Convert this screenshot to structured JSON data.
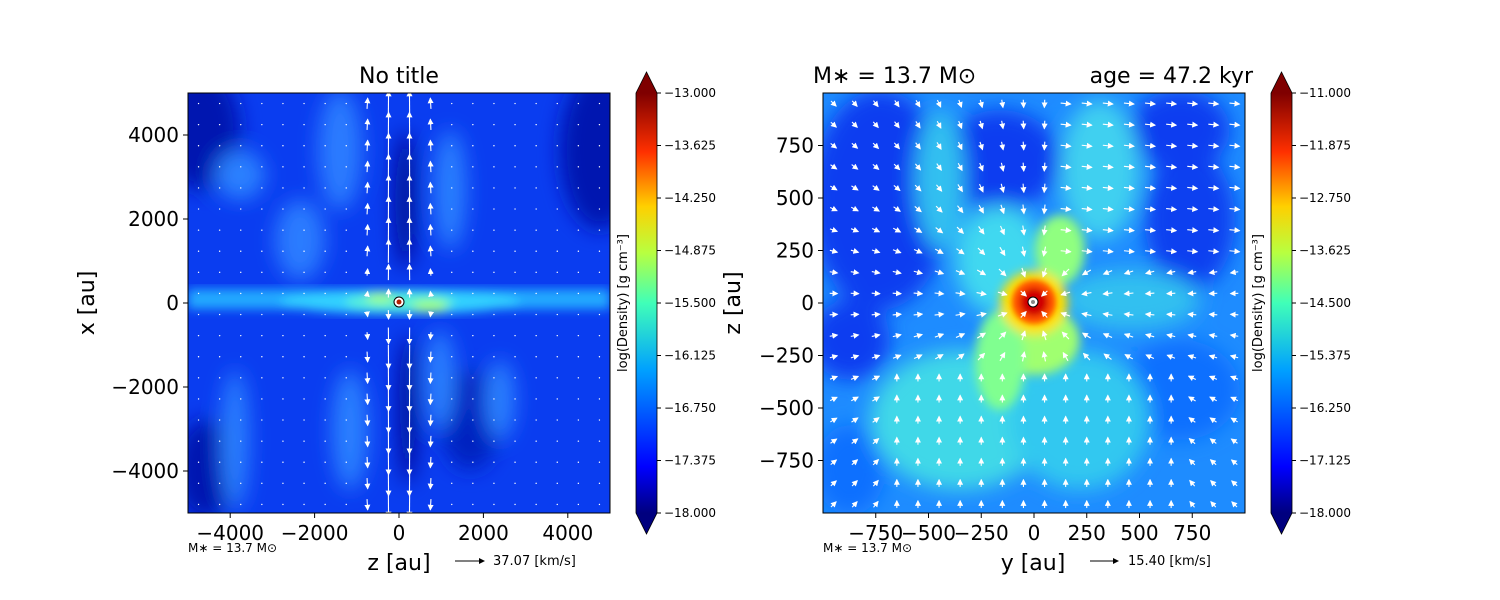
{
  "chart_data": [
    {
      "type": "heatmap",
      "title": "No title",
      "xlabel": "z [au]",
      "ylabel": "x [au]",
      "xlim": [
        -5000,
        5000
      ],
      "ylim": [
        -5000,
        5000
      ],
      "xticks": [
        -4000,
        -2000,
        0,
        2000,
        4000
      ],
      "yticks": [
        -4000,
        -2000,
        0,
        2000,
        4000
      ],
      "xtick_labels": [
        "−4000",
        "−2000",
        "0",
        "2000",
        "4000"
      ],
      "ytick_labels": [
        "−4000",
        "−2000",
        "0",
        "2000",
        "4000"
      ],
      "colorbar": {
        "label": "log(Density) [g cm⁻³]",
        "min": -18.0,
        "max": -13.0,
        "tick_labels": [
          "−13.000",
          "−13.625",
          "−14.250",
          "−14.875",
          "−15.500",
          "−16.125",
          "−16.750",
          "−17.375",
          "−18.000"
        ],
        "colormap": "jet"
      },
      "footnote": "M∗ = 13.7 M⊙",
      "quiver_key": "37.07 [km/s]",
      "features": "Thin dense equatorial band along x≈0; bipolar low-density cavity along z≈0 with strong outflow vectors; sink particle at origin"
    },
    {
      "type": "heatmap",
      "title_left": "M∗ = 13.7 M⊙",
      "title_right": "age = 47.2 kyr",
      "xlabel": "y [au]",
      "ylabel": "z [au]",
      "xlim": [
        -1000,
        1000
      ],
      "ylim": [
        -1000,
        1000
      ],
      "xticks": [
        -750,
        -500,
        -250,
        0,
        250,
        500,
        750
      ],
      "yticks": [
        -750,
        -500,
        -250,
        0,
        250,
        500,
        750
      ],
      "xtick_labels": [
        "−750",
        "−500",
        "−250",
        "0",
        "250",
        "500",
        "750"
      ],
      "ytick_labels": [
        "−750",
        "−500",
        "−250",
        "0",
        "250",
        "500",
        "750"
      ],
      "colorbar": {
        "label": "log(Density) [g cm⁻³]",
        "min": -18.0,
        "max": -11.0,
        "tick_labels": [
          "−11.000",
          "−11.875",
          "−12.750",
          "−13.625",
          "−14.500",
          "−15.375",
          "−16.250",
          "−17.125",
          "−18.000"
        ],
        "colormap": "jet"
      },
      "footnote": "M∗ = 13.7 M⊙",
      "quiver_key": "15.40 [km/s]",
      "features": "Dense red core at origin; filamentary cyan/green streams converging on center; low-density regions upper-left and left"
    }
  ],
  "colors": {
    "jet_low": "#00007f",
    "jet_high": "#7f0000",
    "vectors": "#ffffff",
    "axes": "#000000"
  }
}
